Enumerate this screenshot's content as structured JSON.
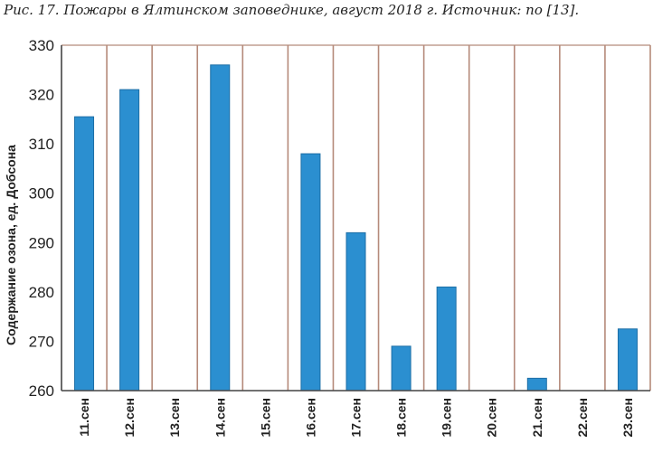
{
  "caption": "Рис. 17. Пожары в Ялтинском заповеднике, август 2018 г. Источник: по [13].",
  "chart_data": {
    "type": "bar",
    "title": "",
    "xlabel": "",
    "ylabel": "Содержание озона, ед. Добсона",
    "ylim": [
      260,
      330
    ],
    "yticks": [
      260,
      270,
      280,
      290,
      300,
      310,
      320,
      330
    ],
    "categories": [
      "11.сен",
      "12.сен",
      "13.сен",
      "14.сен",
      "15.сен",
      "16.сен",
      "17.сен",
      "18.сен",
      "19.сен",
      "20.сен",
      "21.сен",
      "22.сен",
      "23.сен"
    ],
    "values": [
      315.5,
      321,
      null,
      326,
      null,
      308,
      292,
      269,
      281,
      null,
      262.5,
      null,
      272.5
    ],
    "grid": "vertical",
    "legend": "none",
    "colors": {
      "bar": "#2b8fd0",
      "bar_edge": "#1c6ea6",
      "grid": "#b58a7a",
      "axis": "#444444"
    }
  }
}
